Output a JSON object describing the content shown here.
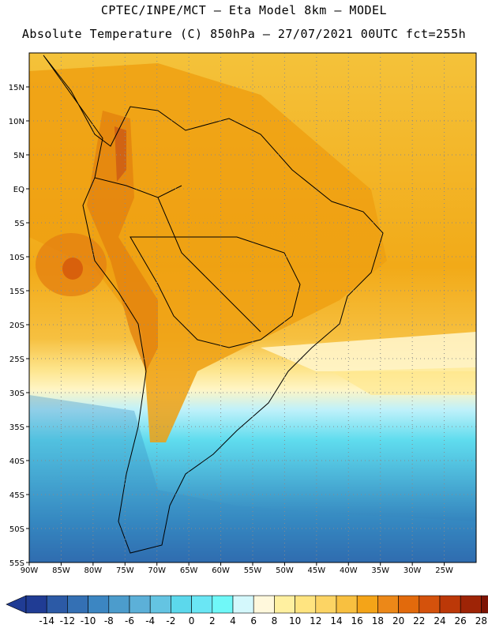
{
  "header": {
    "line1": "CPTEC/INPE/MCT –  Eta Model 8km – MODEL",
    "line2": "Absolute Temperature (C) 850hPa – 27/07/2021 00UTC fct=255h"
  },
  "map": {
    "lon_range": [
      -90,
      -20
    ],
    "lat_range": [
      -55,
      20
    ],
    "lat_ticks": [
      "15N",
      "10N",
      "5N",
      "EQ",
      "5S",
      "10S",
      "15S",
      "20S",
      "25S",
      "30S",
      "35S",
      "40S",
      "45S",
      "50S",
      "55S"
    ],
    "lat_tick_values": [
      15,
      10,
      5,
      0,
      -5,
      -10,
      -15,
      -20,
      -25,
      -30,
      -35,
      -40,
      -45,
      -50,
      -55
    ],
    "lon_ticks": [
      "90W",
      "85W",
      "80W",
      "75W",
      "70W",
      "65W",
      "60W",
      "55W",
      "50W",
      "45W",
      "40W",
      "35W",
      "30W",
      "25W"
    ],
    "lon_tick_values": [
      -90,
      -85,
      -80,
      -75,
      -70,
      -65,
      -60,
      -55,
      -50,
      -45,
      -40,
      -35,
      -30,
      -25
    ],
    "grid": "dotted"
  },
  "colorbar": {
    "labels": [
      "-14",
      "-12",
      "-10",
      "-8",
      "-6",
      "-4",
      "-2",
      "0",
      "2",
      "4",
      "6",
      "8",
      "10",
      "12",
      "14",
      "16",
      "18",
      "20",
      "22",
      "24",
      "26",
      "28"
    ],
    "colors": [
      "#203c94",
      "#2c5aa6",
      "#3470b4",
      "#3c86c2",
      "#4c9ccc",
      "#5cb0d8",
      "#64c4e2",
      "#5cd8ec",
      "#6ae6f4",
      "#70f8f8",
      "#d4f8fc",
      "#fff8dc",
      "#fff0a0",
      "#ffe480",
      "#fcd464",
      "#f8c040",
      "#f4a418",
      "#ec8818",
      "#e26a0c",
      "#d4520c",
      "#bc3808",
      "#9e2406",
      "#7e1404"
    ],
    "left_arrow_color": "#203c94",
    "right_arrow_color": "#7e0e1c"
  }
}
